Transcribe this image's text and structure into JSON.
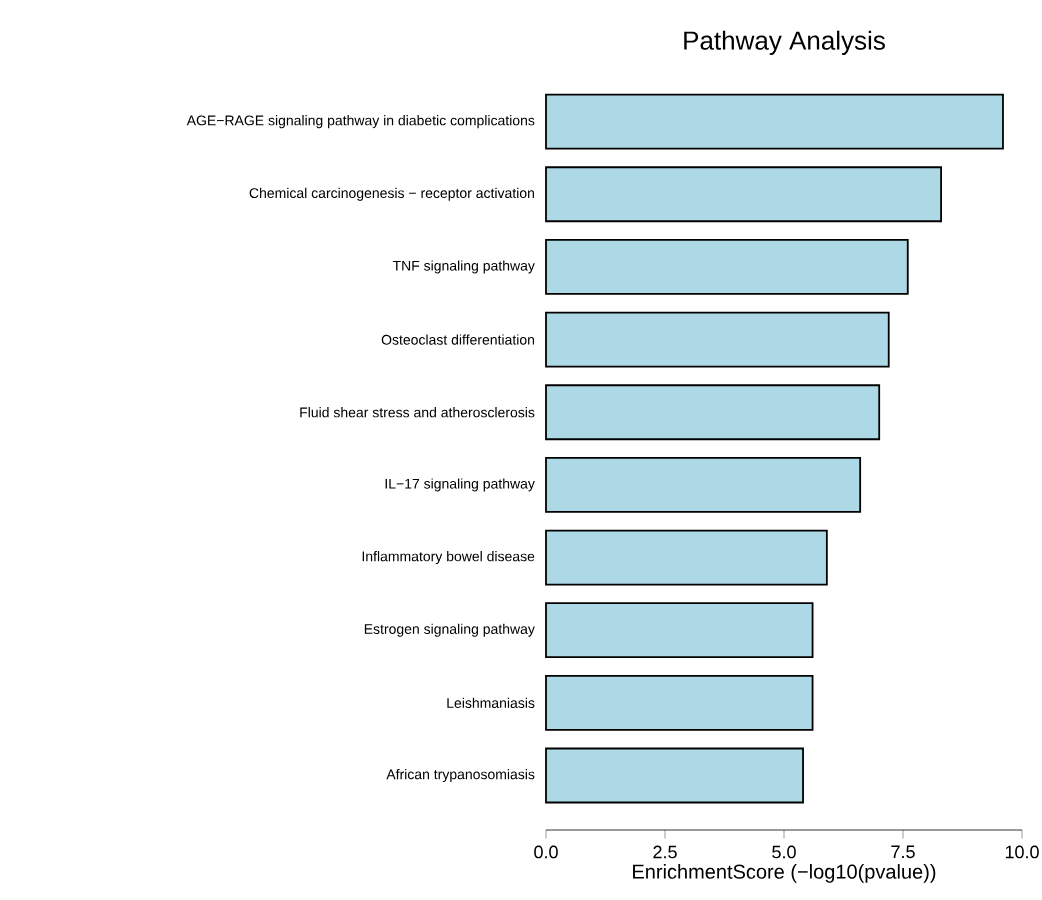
{
  "chart_data": {
    "type": "bar",
    "orientation": "horizontal",
    "title": "Pathway Analysis",
    "xlabel": "EnrichmentScore (−log10(pvalue))",
    "categories": [
      "AGE−RAGE signaling pathway in diabetic complications",
      "Chemical carcinogenesis − receptor activation",
      "TNF signaling pathway",
      "Osteoclast differentiation",
      "Fluid shear stress and atherosclerosis",
      "IL−17 signaling pathway",
      "Inflammatory bowel disease",
      "Estrogen signaling pathway",
      "Leishmaniasis",
      "African trypanosomiasis"
    ],
    "values": [
      9.6,
      8.3,
      7.6,
      7.2,
      7.0,
      6.6,
      5.9,
      5.6,
      5.6,
      5.4
    ],
    "color": "#add8e6",
    "xlim": [
      0,
      10
    ],
    "xticks": [
      {
        "value": 0,
        "label": "0.0"
      },
      {
        "value": 2.5,
        "label": "2.5"
      },
      {
        "value": 5,
        "label": "5.0"
      },
      {
        "value": 7.5,
        "label": "7.5"
      },
      {
        "value": 10,
        "label": "10.0"
      }
    ],
    "grid": false
  }
}
